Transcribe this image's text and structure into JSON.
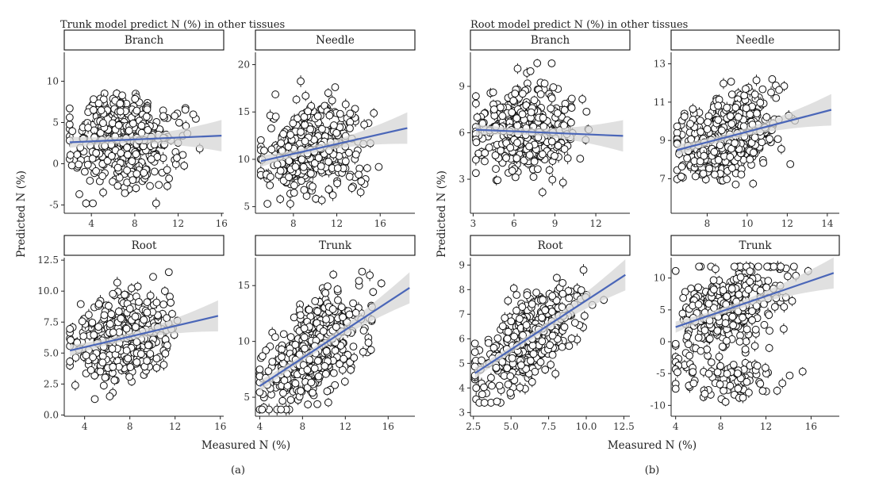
{
  "figure": {
    "panel_a": {
      "title": "Trunk model predict N (%) in other tissues",
      "ylabel": "Predicted N (%)",
      "xlabel": "Measured N (%)",
      "caption": "(a)"
    },
    "panel_b": {
      "title": "Root model predict N (%) in other tissues",
      "ylabel": "Predicted N (%)",
      "xlabel": "Measured N (%)",
      "caption": "(b)"
    }
  },
  "colors": {
    "points_edge": "#111111",
    "points_fill": "#ffffff",
    "fit_line": "#4a66b8",
    "ci_band": "#d6d6d6",
    "strip_fill": "#ffffff"
  },
  "chart_data": [
    {
      "type": "scatter",
      "panel": "a",
      "facet": "Branch",
      "xlim": [
        1.5,
        16.2
      ],
      "ylim": [
        -6,
        13.5
      ],
      "xticks": [
        4,
        8,
        12,
        16
      ],
      "yticks": [
        -5,
        0,
        5,
        10
      ],
      "trend": {
        "x": [
          2,
          16
        ],
        "y": [
          2.6,
          3.4
        ]
      },
      "n_points": 420,
      "x_range": [
        2,
        16
      ],
      "y_range": [
        -4.8,
        12.8
      ],
      "error_bars": true
    },
    {
      "type": "scatter",
      "panel": "a",
      "facet": "Needle",
      "xlim": [
        4.5,
        19.2
      ],
      "ylim": [
        4.3,
        21.3
      ],
      "xticks": [
        8,
        12,
        16
      ],
      "yticks": [
        5,
        10,
        15,
        20
      ],
      "trend": {
        "x": [
          5,
          18.5
        ],
        "y": [
          9.8,
          13.3
        ]
      },
      "n_points": 380,
      "x_range": [
        5,
        18.5
      ],
      "y_range": [
        5.3,
        20.2
      ],
      "error_bars": true
    },
    {
      "type": "scatter",
      "panel": "a",
      "facet": "Root",
      "xlim": [
        2.2,
        16.3
      ],
      "ylim": [
        -0.1,
        12.7
      ],
      "xticks": [
        4,
        8,
        12,
        16
      ],
      "yticks": [
        0.0,
        2.5,
        5.0,
        7.5,
        10.0,
        12.5
      ],
      "trend": {
        "x": [
          2.7,
          15.8
        ],
        "y": [
          5.2,
          8.0
        ]
      },
      "n_points": 360,
      "x_range": [
        2.7,
        15.8
      ],
      "y_range": [
        0.8,
        11.7
      ],
      "error_bars": true
    },
    {
      "type": "scatter",
      "panel": "a",
      "facet": "Trunk",
      "xlim": [
        3.6,
        18.5
      ],
      "ylim": [
        3.3,
        17.5
      ],
      "xticks": [
        4,
        8,
        12,
        16
      ],
      "yticks": [
        5,
        10,
        15
      ],
      "trend": {
        "x": [
          4,
          18
        ],
        "y": [
          6.0,
          14.8
        ]
      },
      "n_points": 420,
      "x_range": [
        4,
        18
      ],
      "y_range": [
        3.9,
        16.6
      ],
      "error_bars": true
    },
    {
      "type": "scatter",
      "panel": "b",
      "facet": "Branch",
      "xlim": [
        2.8,
        14.5
      ],
      "ylim": [
        0.8,
        11.2
      ],
      "xticks": [
        3,
        6,
        9,
        12
      ],
      "yticks": [
        3,
        6,
        9
      ],
      "trend": {
        "x": [
          3.2,
          14
        ],
        "y": [
          6.2,
          5.8
        ]
      },
      "n_points": 420,
      "x_range": [
        3.2,
        14
      ],
      "y_range": [
        1.6,
        10.5
      ],
      "error_bars": true
    },
    {
      "type": "scatter",
      "panel": "b",
      "facet": "Needle",
      "xlim": [
        6.2,
        14.6
      ],
      "ylim": [
        5.2,
        13.6
      ],
      "xticks": [
        8,
        10,
        12,
        14
      ],
      "yticks": [
        7,
        9,
        11,
        13
      ],
      "trend": {
        "x": [
          6.5,
          14.2
        ],
        "y": [
          8.5,
          10.6
        ]
      },
      "n_points": 420,
      "x_range": [
        6.5,
        14.2
      ],
      "y_range": [
        5.8,
        12.2
      ],
      "error_bars": true
    },
    {
      "type": "scatter",
      "panel": "b",
      "facet": "Root",
      "xlim": [
        2.3,
        12.9
      ],
      "ylim": [
        2.85,
        9.3
      ],
      "xticks": [
        2.5,
        5.0,
        7.5,
        10.0,
        12.5
      ],
      "yticks": [
        3,
        4,
        5,
        6,
        7,
        8,
        9
      ],
      "trend": {
        "x": [
          2.6,
          12.6
        ],
        "y": [
          4.6,
          8.6
        ]
      },
      "n_points": 380,
      "x_range": [
        2.6,
        12.6
      ],
      "y_range": [
        3.4,
        8.8
      ],
      "error_bars": true
    },
    {
      "type": "scatter",
      "panel": "b",
      "facet": "Trunk",
      "xlim": [
        3.6,
        18.5
      ],
      "ylim": [
        -11.7,
        13.2
      ],
      "xticks": [
        4,
        8,
        12,
        16
      ],
      "yticks": [
        -10,
        -5,
        0,
        5,
        10
      ],
      "trend": {
        "x": [
          4,
          18
        ],
        "y": [
          2.3,
          10.8
        ]
      },
      "n_points": 420,
      "x_range": [
        4,
        18
      ],
      "y_range": [
        -9.8,
        11.8
      ],
      "error_bars": true
    }
  ]
}
